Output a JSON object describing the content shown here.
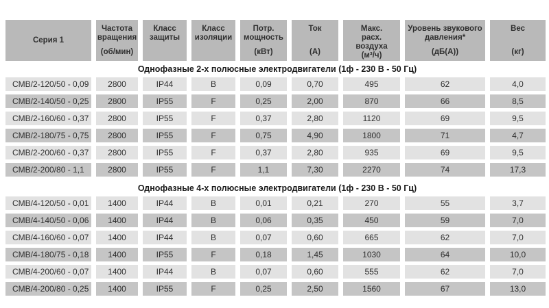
{
  "chart_data": {
    "type": "table",
    "title": "",
    "columns": [
      {
        "title": "Серия 1",
        "unit": ""
      },
      {
        "title": "Частота вращения",
        "unit": "(об/мин)"
      },
      {
        "title": "Класс защиты",
        "unit": ""
      },
      {
        "title": "Класс изоляции",
        "unit": ""
      },
      {
        "title": "Потр. мощность",
        "unit": "(кВт)"
      },
      {
        "title": "Ток",
        "unit": "(А)"
      },
      {
        "title": "Макс. расх. воздуха",
        "unit": "(м³/ч)"
      },
      {
        "title": "Уровень звукового давления*",
        "unit": "(дБ(А))"
      },
      {
        "title": "Вес",
        "unit": "(кг)"
      }
    ],
    "sections": [
      {
        "title": "Однофазные 2-х полюсные электродвигатели (1ф - 230 В - 50 Гц)",
        "rows": [
          [
            "CMB/2-120/50 - 0,09",
            "2800",
            "IP44",
            "B",
            "0,09",
            "0,70",
            "495",
            "62",
            "4,0"
          ],
          [
            "CMB/2-140/50 - 0,25",
            "2800",
            "IP55",
            "F",
            "0,25",
            "2,00",
            "870",
            "66",
            "8,5"
          ],
          [
            "CMB/2-160/60 - 0,37",
            "2800",
            "IP55",
            "F",
            "0,37",
            "2,80",
            "1120",
            "69",
            "9,5"
          ],
          [
            "CMB/2-180/75 - 0,75",
            "2800",
            "IP55",
            "F",
            "0,75",
            "4,90",
            "1800",
            "71",
            "4,7"
          ],
          [
            "CMB/2-200/60 - 0,37",
            "2800",
            "IP55",
            "F",
            "0,37",
            "2,80",
            "935",
            "69",
            "9,5"
          ],
          [
            "CMB/2-200/80 - 1,1",
            "2800",
            "IP55",
            "F",
            "1,1",
            "7,30",
            "2270",
            "74",
            "17,3"
          ]
        ]
      },
      {
        "title": "Однофазные 4-х полюсные электродвигатели (1ф - 230 В - 50 Гц)",
        "rows": [
          [
            "CMB/4-120/50 - 0,01",
            "1400",
            "IP44",
            "B",
            "0,01",
            "0,21",
            "270",
            "55",
            "3,7"
          ],
          [
            "CMB/4-140/50 - 0,06",
            "1400",
            "IP44",
            "B",
            "0,06",
            "0,35",
            "450",
            "59",
            "7,0"
          ],
          [
            "CMB/4-160/60 - 0,07",
            "1400",
            "IP44",
            "B",
            "0,07",
            "0,60",
            "665",
            "62",
            "7,0"
          ],
          [
            "CMB/4-180/75 - 0,18",
            "1400",
            "IP55",
            "F",
            "0,18",
            "1,45",
            "1030",
            "64",
            "10,0"
          ],
          [
            "CMB/4-200/60 - 0,07",
            "1400",
            "IP44",
            "B",
            "0,07",
            "0,60",
            "555",
            "62",
            "7,0"
          ],
          [
            "CMB/4-200/80 - 0,25",
            "1400",
            "IP55",
            "F",
            "0,25",
            "2,50",
            "1560",
            "67",
            "13,0"
          ]
        ]
      }
    ],
    "colors": {
      "header_bg": "#b9b9b9",
      "row_light": "#e2e2e2",
      "row_dark": "#c5c5c5",
      "text": "#2e2e2e"
    }
  }
}
